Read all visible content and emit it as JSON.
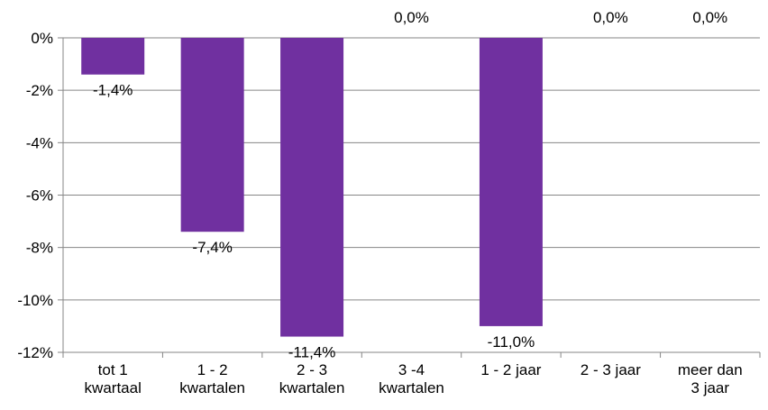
{
  "chart_data": {
    "type": "bar",
    "categories": [
      [
        "tot 1",
        "kwartaal"
      ],
      [
        "1 - 2",
        "kwartalen"
      ],
      [
        "2 - 3",
        "kwartalen"
      ],
      [
        "3 -4",
        "kwartalen"
      ],
      [
        "1 - 2 jaar"
      ],
      [
        "2 - 3 jaar"
      ],
      [
        "meer dan",
        "3 jaar"
      ]
    ],
    "values": [
      -1.4,
      -7.4,
      -11.4,
      0.0,
      -11.0,
      0.0,
      0.0
    ],
    "data_labels": [
      "-1,4%",
      "-7,4%",
      "-11,4%",
      "0,0%",
      "-11,0%",
      "0,0%",
      "0,0%"
    ],
    "ylim": [
      -12,
      0
    ],
    "yticks": [
      0,
      -2,
      -4,
      -6,
      -8,
      -10,
      -12
    ],
    "ytick_labels": [
      "0%",
      "-2%",
      "-4%",
      "-6%",
      "-8%",
      "-10%",
      "-12%"
    ],
    "grid": true,
    "legend": "none",
    "bar_color": "#7030a0",
    "grid_color": "#868686"
  }
}
